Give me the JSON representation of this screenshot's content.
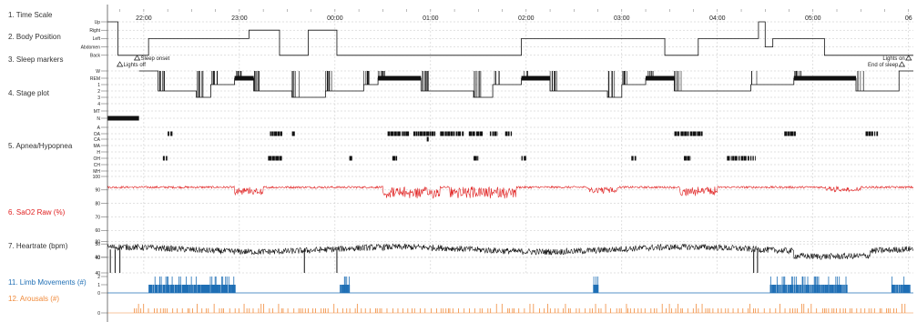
{
  "colors": {
    "black": "#111111",
    "red": "#e02020",
    "blue": "#1f6fb5",
    "orange": "#f08a3a",
    "grid": "#c4c4c4",
    "label": "#333333"
  },
  "rows": [
    {
      "name": "time-scale",
      "label": "1. Time Scale",
      "color": "#333333"
    },
    {
      "name": "body-position",
      "label": "2. Body Position",
      "color": "#333333"
    },
    {
      "name": "sleep-markers",
      "label": "3. Sleep markers",
      "color": "#333333"
    },
    {
      "name": "stage-plot",
      "label": "4. Stage plot",
      "color": "#333333"
    },
    {
      "name": "apnea-hypopnea",
      "label": "5. Apnea/Hypopnea",
      "color": "#333333"
    },
    {
      "name": "sao2-raw",
      "label": "6. SaO2 Raw (%)",
      "color": "#e02020"
    },
    {
      "name": "heartrate",
      "label": "7. Heartrate (bpm)",
      "color": "#333333"
    },
    {
      "name": "limb-movements",
      "label": "11. Limb Movements (#)",
      "color": "#1f6fb5"
    },
    {
      "name": "arousals",
      "label": "12. Arousals (#)",
      "color": "#f08a3a"
    }
  ],
  "chart_data": {
    "type": "line",
    "time_ticks": [
      "22:00",
      "23:00",
      "00:00",
      "01:00",
      "02:00",
      "03:00",
      "04:00",
      "05:00",
      "06"
    ],
    "start_hour": 21.62,
    "end_hour": 6.05,
    "position_levels": [
      "Up",
      "Right",
      "Left",
      "Abdomen",
      "Back"
    ],
    "position_segments": [
      {
        "start": 21.62,
        "end": 21.73,
        "level": "Up"
      },
      {
        "start": 21.73,
        "end": 22.05,
        "level": "Back"
      },
      {
        "start": 22.05,
        "end": 23.1,
        "level": "Left"
      },
      {
        "start": 23.1,
        "end": 23.42,
        "level": "Right"
      },
      {
        "start": 23.42,
        "end": 23.72,
        "level": "Back"
      },
      {
        "start": 23.72,
        "end": 24.02,
        "level": "Right"
      },
      {
        "start": 24.02,
        "end": 25.95,
        "level": "Back"
      },
      {
        "start": 25.95,
        "end": 27.45,
        "level": "Left"
      },
      {
        "start": 27.45,
        "end": 27.8,
        "level": "Back"
      },
      {
        "start": 27.8,
        "end": 28.43,
        "level": "Left"
      },
      {
        "start": 28.43,
        "end": 28.5,
        "level": "Up"
      },
      {
        "start": 28.5,
        "end": 28.58,
        "level": "Abdomen"
      },
      {
        "start": 28.58,
        "end": 29.12,
        "level": "Left"
      },
      {
        "start": 29.12,
        "end": 30.05,
        "level": "Back"
      }
    ],
    "sleep_markers": [
      {
        "label": "Lights off",
        "hour": 21.75
      },
      {
        "label": "Sleep onset",
        "hour": 21.93
      },
      {
        "label": "End of sleep",
        "hour": 29.93
      },
      {
        "label": "Lights on",
        "hour": 30.0
      }
    ],
    "stage_levels": [
      "W",
      "REM",
      "1",
      "2",
      "3",
      "4",
      "MT",
      "N"
    ],
    "stage_segments": [
      {
        "start": 21.62,
        "end": 21.95,
        "stage": "N"
      },
      {
        "start": 21.95,
        "end": 22.15,
        "stage": "W"
      },
      {
        "start": 22.15,
        "end": 22.55,
        "stage": "2"
      },
      {
        "start": 22.55,
        "end": 22.7,
        "stage": "3"
      },
      {
        "start": 22.7,
        "end": 22.95,
        "stage": "1"
      },
      {
        "start": 22.95,
        "end": 23.15,
        "stage": "REM"
      },
      {
        "start": 23.15,
        "end": 23.55,
        "stage": "2"
      },
      {
        "start": 23.55,
        "end": 23.9,
        "stage": "3"
      },
      {
        "start": 23.9,
        "end": 24.3,
        "stage": "2"
      },
      {
        "start": 24.3,
        "end": 24.45,
        "stage": "1"
      },
      {
        "start": 24.45,
        "end": 24.9,
        "stage": "REM"
      },
      {
        "start": 24.9,
        "end": 25.45,
        "stage": "2"
      },
      {
        "start": 25.45,
        "end": 25.65,
        "stage": "3"
      },
      {
        "start": 25.65,
        "end": 25.95,
        "stage": "1"
      },
      {
        "start": 25.95,
        "end": 26.25,
        "stage": "REM"
      },
      {
        "start": 26.25,
        "end": 26.85,
        "stage": "2"
      },
      {
        "start": 26.85,
        "end": 27.0,
        "stage": "3"
      },
      {
        "start": 27.0,
        "end": 27.25,
        "stage": "1"
      },
      {
        "start": 27.25,
        "end": 27.55,
        "stage": "REM"
      },
      {
        "start": 27.55,
        "end": 28.35,
        "stage": "2"
      },
      {
        "start": 28.35,
        "end": 28.8,
        "stage": "1"
      },
      {
        "start": 28.8,
        "end": 29.45,
        "stage": "REM"
      },
      {
        "start": 29.45,
        "end": 29.9,
        "stage": "2"
      },
      {
        "start": 29.9,
        "end": 30.05,
        "stage": "W"
      }
    ],
    "event_levels": [
      "A",
      "OA",
      "CA",
      "MA",
      "H",
      "OH",
      "CH",
      "MH"
    ],
    "events": [
      {
        "type": "OA",
        "start": 22.25,
        "end": 22.3
      },
      {
        "type": "OA",
        "start": 23.32,
        "end": 23.45
      },
      {
        "type": "OA",
        "start": 23.55,
        "end": 23.58
      },
      {
        "type": "OA",
        "start": 24.55,
        "end": 24.78
      },
      {
        "type": "OA",
        "start": 24.82,
        "end": 25.05
      },
      {
        "type": "OA",
        "start": 25.1,
        "end": 25.35
      },
      {
        "type": "OA",
        "start": 25.4,
        "end": 25.55
      },
      {
        "type": "OA",
        "start": 25.62,
        "end": 25.7
      },
      {
        "type": "OA",
        "start": 25.78,
        "end": 25.85
      },
      {
        "type": "OA",
        "start": 27.55,
        "end": 27.85
      },
      {
        "type": "OA",
        "start": 28.7,
        "end": 28.82
      },
      {
        "type": "OA",
        "start": 29.55,
        "end": 29.68
      },
      {
        "type": "CA",
        "start": 24.96,
        "end": 24.98
      },
      {
        "type": "OH",
        "start": 22.2,
        "end": 22.25
      },
      {
        "type": "OH",
        "start": 23.3,
        "end": 23.45
      },
      {
        "type": "OH",
        "start": 24.15,
        "end": 24.18
      },
      {
        "type": "OH",
        "start": 24.6,
        "end": 24.65
      },
      {
        "type": "OH",
        "start": 25.45,
        "end": 25.5
      },
      {
        "type": "OH",
        "start": 25.95,
        "end": 26.0
      },
      {
        "type": "OH",
        "start": 27.1,
        "end": 27.15
      },
      {
        "type": "OH",
        "start": 27.65,
        "end": 27.72
      },
      {
        "type": "OH",
        "start": 28.1,
        "end": 28.4
      }
    ],
    "sao2_axis": [
      100,
      90,
      80,
      70,
      60,
      50,
      40
    ],
    "sao2_base": 92,
    "sao2_dips": [
      {
        "start": 22.95,
        "end": 23.25,
        "depth": 5
      },
      {
        "start": 24.5,
        "end": 25.1,
        "depth": 8
      },
      {
        "start": 25.2,
        "end": 25.9,
        "depth": 8
      },
      {
        "start": 26.65,
        "end": 26.95,
        "depth": 4
      },
      {
        "start": 27.6,
        "end": 28.0,
        "depth": 6
      },
      {
        "start": 29.1,
        "end": 29.5,
        "depth": 3
      }
    ],
    "hr_axis": [
      80,
      60,
      40
    ],
    "hr_base": 70,
    "hr_dropouts": [
      21.65,
      21.7,
      21.75,
      23.68,
      24.02,
      28.38,
      28.42
    ],
    "limb_axis": [
      2,
      1,
      0
    ],
    "limb_clusters": [
      {
        "start": 22.05,
        "end": 22.95
      },
      {
        "start": 24.05,
        "end": 24.15
      },
      {
        "start": 26.7,
        "end": 26.75
      },
      {
        "start": 28.55,
        "end": 29.35
      },
      {
        "start": 29.82,
        "end": 30.02
      }
    ],
    "arousal_axis": [
      0
    ]
  }
}
